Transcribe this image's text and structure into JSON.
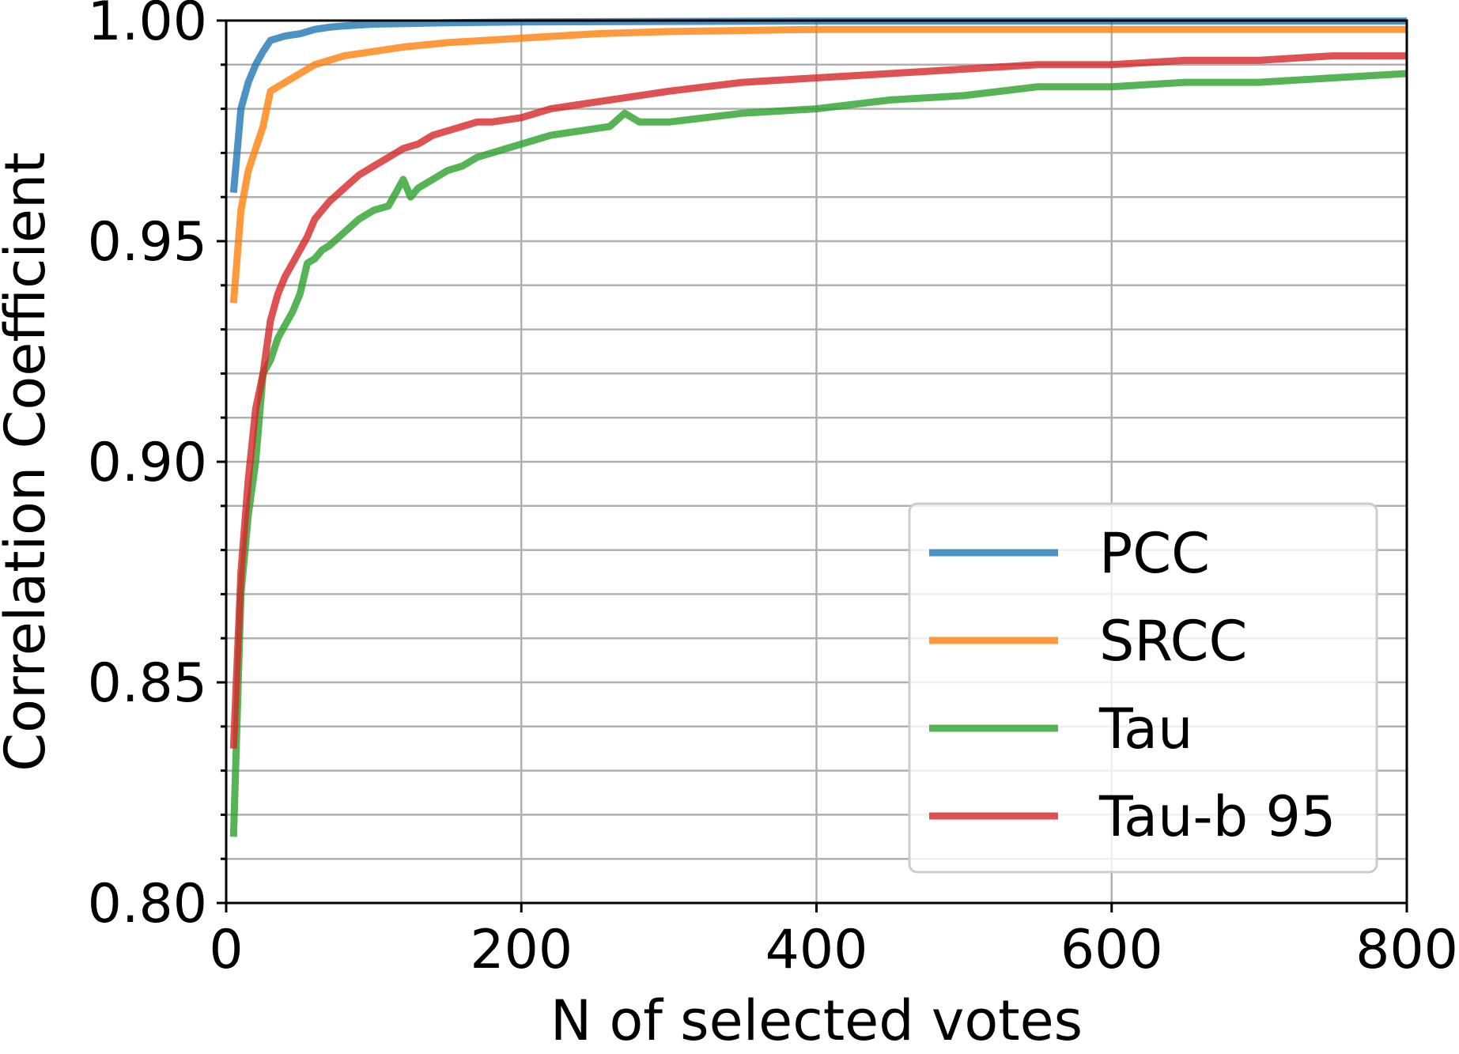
{
  "chart_data": {
    "type": "line",
    "title": "",
    "xlabel": "N of selected votes",
    "ylabel": "Correlation Coefficient",
    "xlim": [
      0,
      800
    ],
    "ylim": [
      0.8,
      1.0
    ],
    "x_ticks": [
      "0",
      "200",
      "400",
      "600",
      "800"
    ],
    "y_ticks": [
      "0.80",
      "0.85",
      "0.90",
      "0.95",
      "1.00"
    ],
    "grid": true,
    "legend_position": "bottom-right",
    "series": [
      {
        "name": "PCC",
        "color": "#1f77b4",
        "x": [
          5,
          10,
          15,
          20,
          25,
          30,
          40,
          50,
          60,
          70,
          80,
          100,
          150,
          200,
          300,
          400,
          600,
          800
        ],
        "y": [
          0.961,
          0.98,
          0.986,
          0.99,
          0.993,
          0.9955,
          0.9965,
          0.997,
          0.998,
          0.9985,
          0.9988,
          0.9992,
          0.9995,
          0.9997,
          0.9998,
          0.9999,
          0.9999,
          0.9999
        ]
      },
      {
        "name": "SRCC",
        "color": "#ff7f0e",
        "x": [
          5,
          10,
          15,
          20,
          25,
          30,
          40,
          50,
          60,
          70,
          80,
          100,
          120,
          150,
          200,
          250,
          300,
          400,
          500,
          600,
          700,
          800
        ],
        "y": [
          0.936,
          0.957,
          0.966,
          0.971,
          0.976,
          0.984,
          0.986,
          0.988,
          0.99,
          0.991,
          0.992,
          0.993,
          0.994,
          0.995,
          0.996,
          0.997,
          0.9975,
          0.998,
          0.998,
          0.998,
          0.998,
          0.998
        ]
      },
      {
        "name": "Tau",
        "color": "#2ca02c",
        "x": [
          5,
          10,
          15,
          20,
          25,
          30,
          35,
          40,
          45,
          50,
          55,
          60,
          65,
          70,
          80,
          90,
          100,
          110,
          120,
          125,
          130,
          140,
          150,
          160,
          170,
          180,
          200,
          220,
          240,
          260,
          270,
          280,
          300,
          350,
          400,
          450,
          500,
          550,
          600,
          650,
          700,
          750,
          800
        ],
        "y": [
          0.815,
          0.87,
          0.888,
          0.9,
          0.92,
          0.923,
          0.928,
          0.931,
          0.934,
          0.938,
          0.945,
          0.946,
          0.948,
          0.949,
          0.952,
          0.955,
          0.957,
          0.958,
          0.964,
          0.96,
          0.962,
          0.964,
          0.966,
          0.967,
          0.969,
          0.97,
          0.972,
          0.974,
          0.975,
          0.976,
          0.979,
          0.977,
          0.977,
          0.979,
          0.98,
          0.982,
          0.983,
          0.985,
          0.985,
          0.986,
          0.986,
          0.987,
          0.988
        ]
      },
      {
        "name": "Tau-b 95",
        "color": "#d62728",
        "x": [
          5,
          10,
          15,
          20,
          25,
          30,
          35,
          40,
          45,
          50,
          55,
          60,
          65,
          70,
          80,
          90,
          100,
          110,
          120,
          130,
          140,
          150,
          160,
          170,
          180,
          200,
          220,
          240,
          260,
          280,
          300,
          350,
          400,
          450,
          500,
          550,
          600,
          650,
          700,
          750,
          800
        ],
        "y": [
          0.835,
          0.875,
          0.896,
          0.912,
          0.92,
          0.932,
          0.938,
          0.942,
          0.945,
          0.948,
          0.951,
          0.955,
          0.957,
          0.959,
          0.962,
          0.965,
          0.967,
          0.969,
          0.971,
          0.972,
          0.974,
          0.975,
          0.976,
          0.977,
          0.977,
          0.978,
          0.98,
          0.981,
          0.982,
          0.983,
          0.984,
          0.986,
          0.987,
          0.988,
          0.989,
          0.99,
          0.99,
          0.991,
          0.991,
          0.992,
          0.992
        ]
      }
    ]
  }
}
